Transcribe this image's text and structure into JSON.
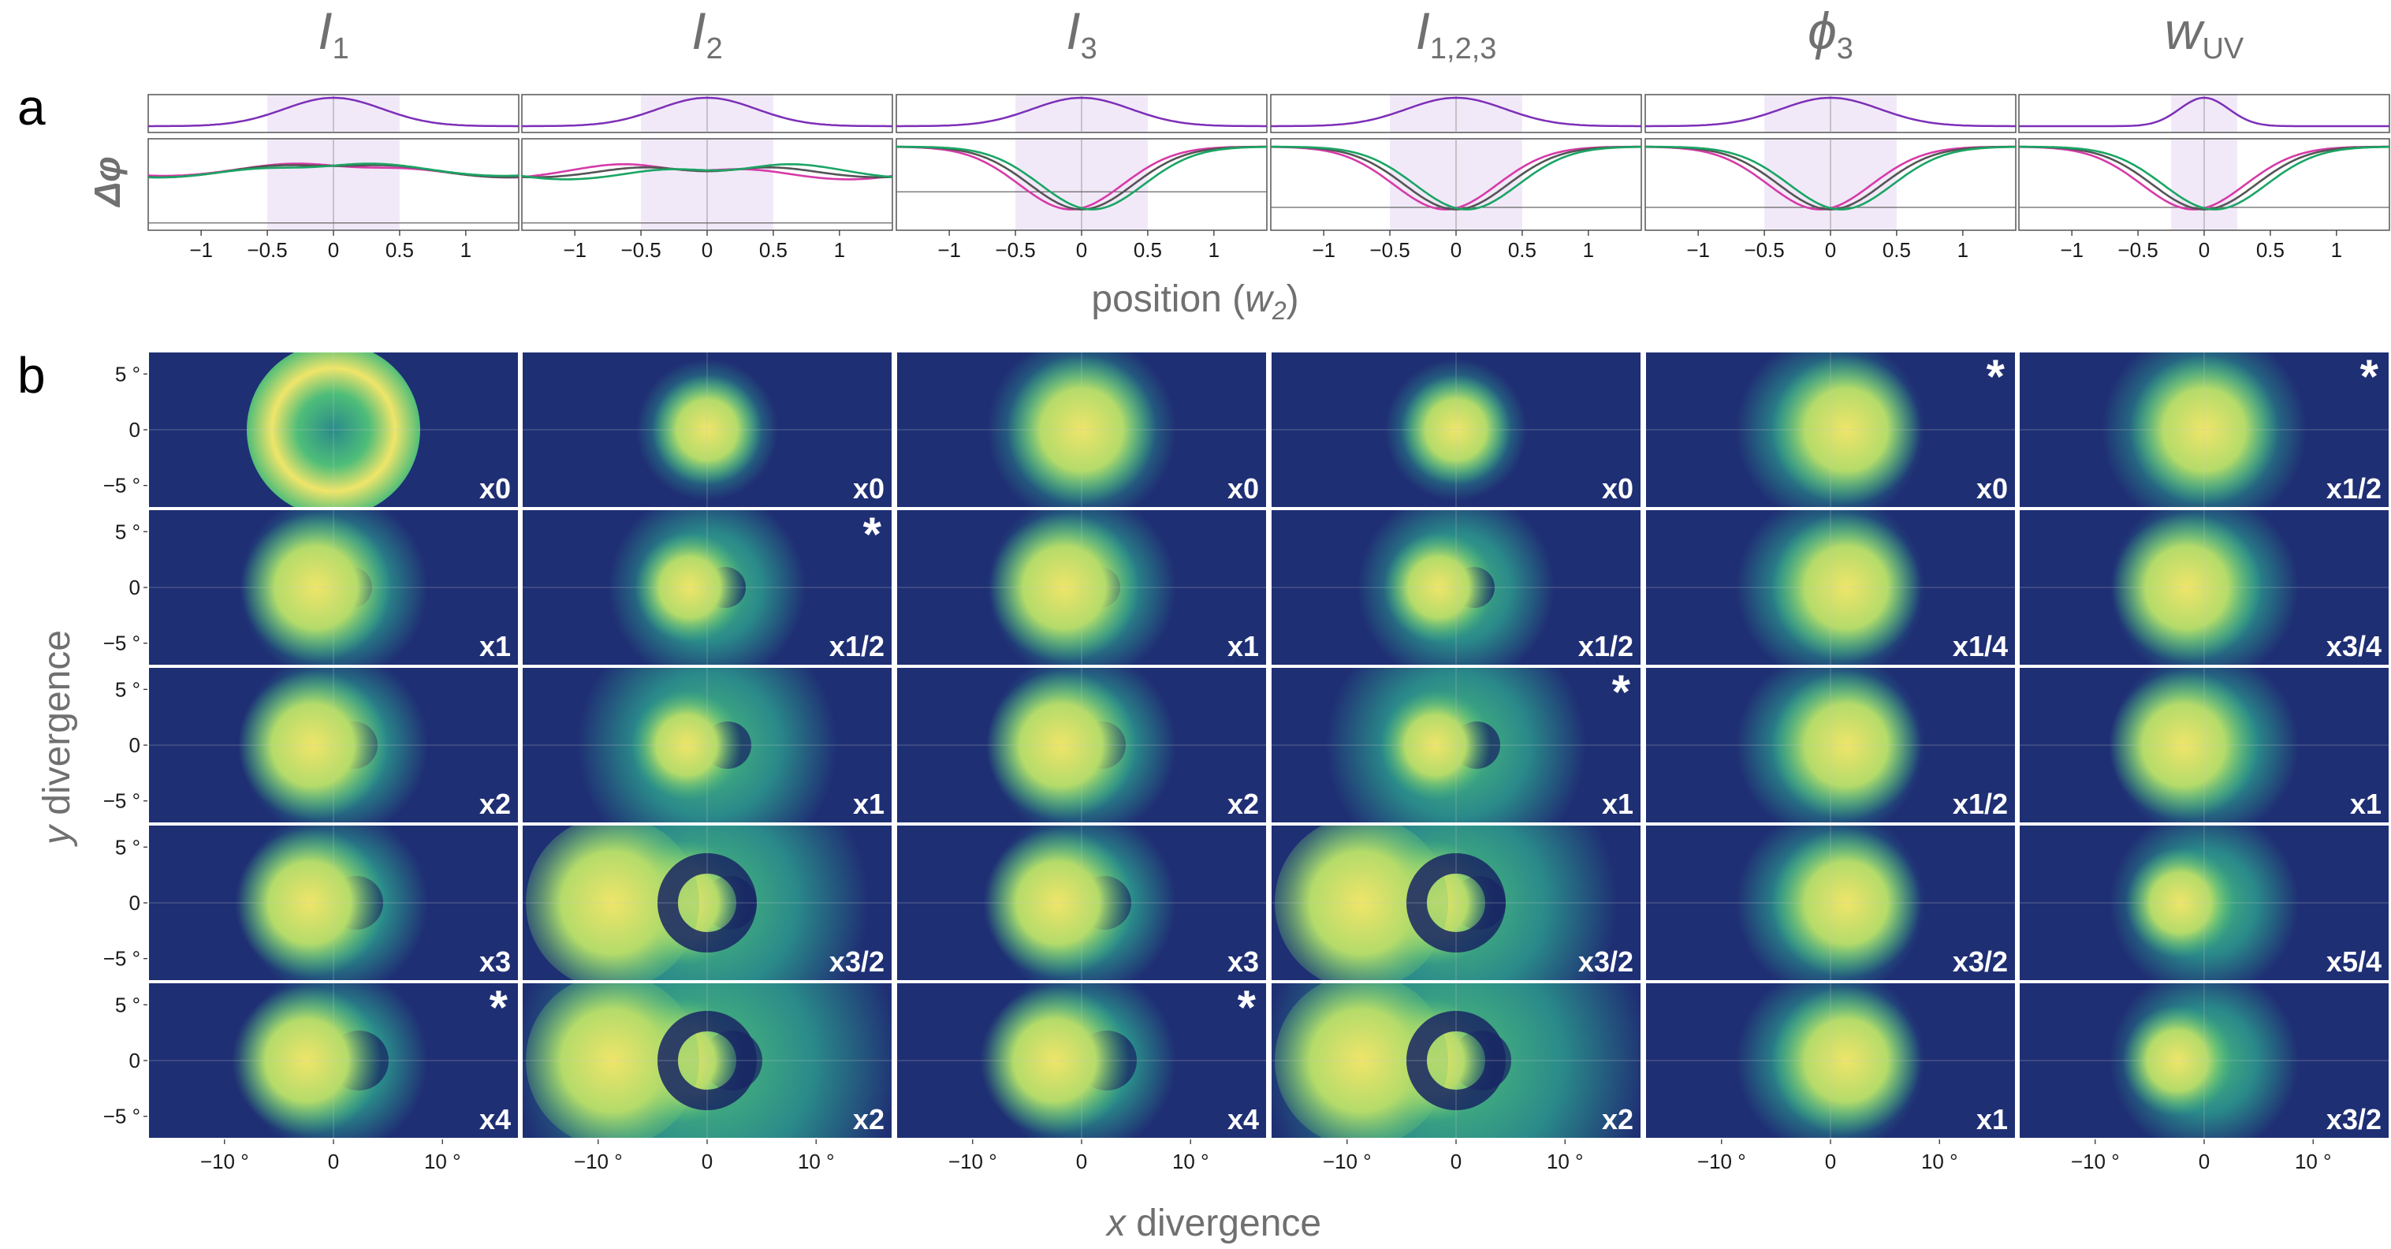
{
  "panel_labels": {
    "a": "a",
    "b": "b"
  },
  "columns": [
    {
      "base": "I",
      "sub": "1"
    },
    {
      "base": "I",
      "sub": "2"
    },
    {
      "base": "I",
      "sub": "3"
    },
    {
      "base": "I",
      "sub": "1,2,3"
    },
    {
      "base": "ϕ",
      "sub": "3"
    },
    {
      "base": "w",
      "sub": "UV"
    }
  ],
  "colors": {
    "purple": "#7d2fb8",
    "magenta": "#d63aa8",
    "gray": "#555555",
    "green": "#1aa564",
    "shade": "#f1e9f8",
    "frame": "#555555"
  },
  "chart_data": [
    {
      "type": "line",
      "panel": "a",
      "title": "",
      "ylabel": "Δφ",
      "xlabel_parts": [
        "position (",
        "w",
        "2",
        ")"
      ],
      "xlim": [
        -1.4,
        1.4
      ],
      "x_ticks": [
        -1,
        -0.5,
        0,
        0.5,
        1
      ],
      "x_tick_labels": [
        "−1",
        "−0.5",
        "0",
        "0.5",
        "1"
      ],
      "top_profile": {
        "description": "Gaussian intensity profile (purple)",
        "width": [
          0.5,
          0.5,
          0.5,
          0.5,
          0.5,
          0.25
        ]
      },
      "shaded_region": [
        [
          -0.5,
          0.5
        ],
        [
          -0.5,
          0.5
        ],
        [
          -0.5,
          0.5
        ],
        [
          -0.5,
          0.5
        ],
        [
          -0.5,
          0.5
        ],
        [
          -0.25,
          0.25
        ]
      ],
      "series_colors": [
        "magenta",
        "gray",
        "green"
      ],
      "baseline_level": [
        0.08,
        0.08,
        0.42,
        0.25,
        0.25,
        0.25
      ],
      "dip_depth": [
        0.18,
        0.3,
        1.0,
        1.0,
        1.0,
        1.0
      ]
    },
    {
      "type": "heatmap",
      "panel": "b",
      "xlabel_parts": [
        "x",
        " divergence"
      ],
      "ylabel_parts": [
        "y",
        " divergence"
      ],
      "x_range_deg": [
        -17,
        17
      ],
      "y_range_deg": [
        -7,
        7
      ],
      "x_ticks": [
        -10,
        0,
        10
      ],
      "x_tick_labels": [
        "−10 °",
        "0",
        "10 °"
      ],
      "y_ticks": [
        5,
        0,
        -5
      ],
      "y_tick_labels": [
        "5 °",
        "0",
        "−5 °"
      ],
      "colormap": "viridis-like (navy to yellow)",
      "multipliers": [
        [
          "x0",
          "x0",
          "x0",
          "x0",
          "x0",
          "x1/2"
        ],
        [
          "x1",
          "x1/2",
          "x1",
          "x1/2",
          "x1/4",
          "x3/4"
        ],
        [
          "x2",
          "x1",
          "x2",
          "x1",
          "x1/2",
          "x1"
        ],
        [
          "x3",
          "x3/2",
          "x3",
          "x3/2",
          "x3/2",
          "x5/4"
        ],
        [
          "x4",
          "x2",
          "x4",
          "x2",
          "x1",
          "x3/2"
        ]
      ],
      "star_symbol": "*",
      "starred": [
        [
          0,
          4
        ],
        [
          0,
          5
        ],
        [
          1,
          1
        ],
        [
          2,
          3
        ],
        [
          4,
          0
        ],
        [
          4,
          2
        ]
      ]
    }
  ]
}
